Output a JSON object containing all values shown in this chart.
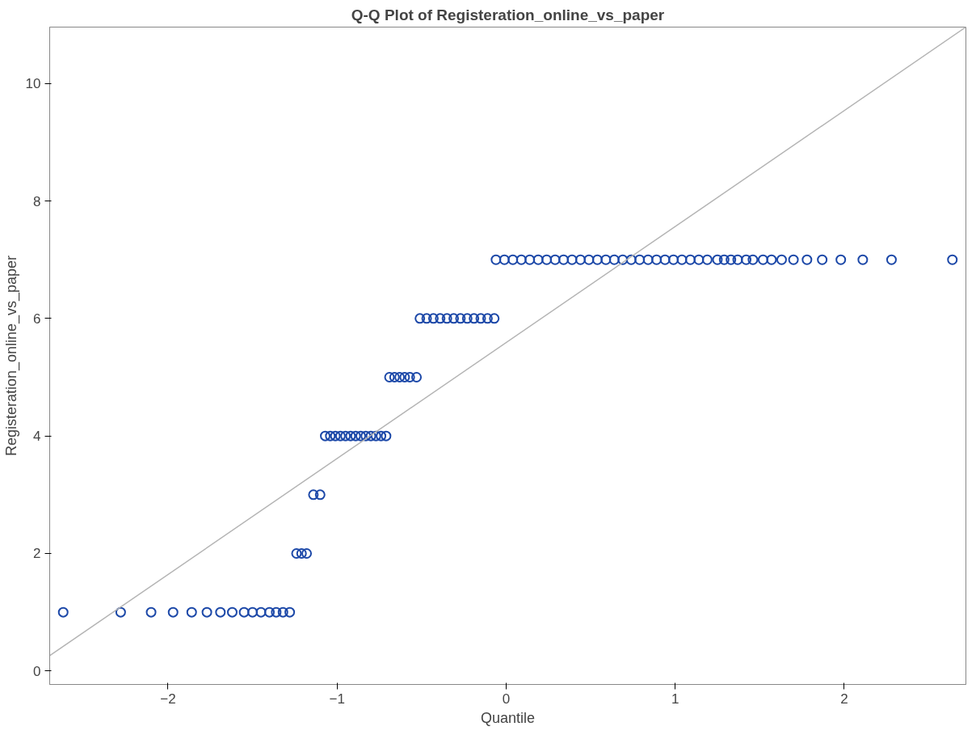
{
  "chart_data": {
    "type": "scatter",
    "title": "Q-Q Plot of Registeration_online_vs_paper",
    "xlabel": "Quantile",
    "ylabel": "Registeration_online_vs_paper",
    "marker": "circle",
    "grid": false,
    "xlim": [
      -2.7,
      2.72
    ],
    "ylim": [
      -0.23,
      10.96
    ],
    "xticks": [
      -2,
      -1,
      0,
      1,
      2
    ],
    "yticks": [
      0,
      2,
      4,
      6,
      8,
      10
    ],
    "series": [
      {
        "color": "#1c48a8",
        "x": [
          -2.62,
          -2.28,
          -2.1,
          -1.97,
          -1.86,
          -1.77,
          -1.69,
          -1.62,
          -1.55,
          -1.5,
          -1.45,
          -1.4,
          -1.36,
          -1.32,
          -1.28,
          -1.24,
          -1.21,
          -1.18,
          -1.14,
          -1.1,
          -1.07,
          -1.04,
          -1.01,
          -0.98,
          -0.95,
          -0.92,
          -0.89,
          -0.86,
          -0.83,
          -0.8,
          -0.77,
          -0.74,
          -0.71,
          -0.69,
          -0.66,
          -0.63,
          -0.6,
          -0.57,
          -0.53,
          -0.51,
          -0.47,
          -0.43,
          -0.39,
          -0.35,
          -0.31,
          -0.27,
          -0.23,
          -0.19,
          -0.15,
          -0.11,
          -0.07,
          -0.06,
          -0.01,
          0.04,
          0.09,
          0.14,
          0.19,
          0.24,
          0.29,
          0.34,
          0.39,
          0.44,
          0.49,
          0.54,
          0.59,
          0.64,
          0.69,
          0.74,
          0.79,
          0.84,
          0.89,
          0.94,
          0.99,
          1.04,
          1.09,
          1.14,
          1.19,
          1.25,
          1.29,
          1.33,
          1.37,
          1.42,
          1.46,
          1.52,
          1.57,
          1.63,
          1.7,
          1.78,
          1.87,
          1.98,
          2.11,
          2.28,
          2.64
        ],
        "values": [
          1,
          1,
          1,
          1,
          1,
          1,
          1,
          1,
          1,
          1,
          1,
          1,
          1,
          1,
          1,
          2,
          2,
          2,
          3,
          3,
          4,
          4,
          4,
          4,
          4,
          4,
          4,
          4,
          4,
          4,
          4,
          4,
          4,
          5,
          5,
          5,
          5,
          5,
          5,
          6,
          6,
          6,
          6,
          6,
          6,
          6,
          6,
          6,
          6,
          6,
          6,
          7,
          7,
          7,
          7,
          7,
          7,
          7,
          7,
          7,
          7,
          7,
          7,
          7,
          7,
          7,
          7,
          7,
          7,
          7,
          7,
          7,
          7,
          7,
          7,
          7,
          7,
          7,
          7,
          7,
          7,
          7,
          7,
          7,
          7,
          7,
          7,
          7,
          7,
          7,
          7,
          7,
          7
        ]
      },
      {
        "type": "line",
        "marker": "none",
        "color": "#b4b4b4",
        "x": [
          -2.7,
          2.72
        ],
        "values": [
          0.26,
          10.96
        ]
      }
    ]
  }
}
